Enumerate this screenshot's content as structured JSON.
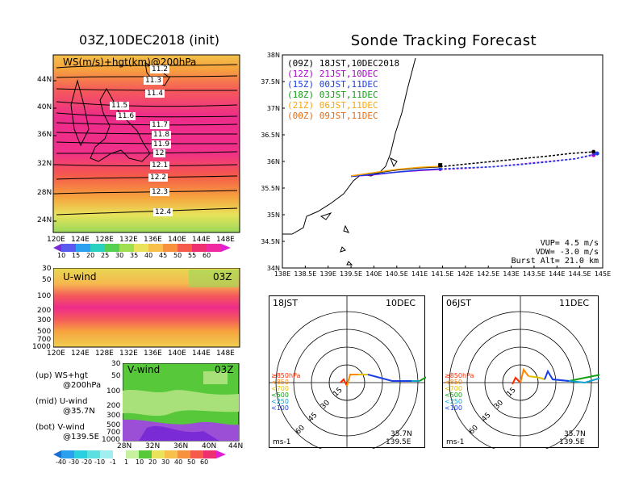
{
  "left_title": "03Z,10DEC2018 (init)",
  "right_title": "Sonde Tracking Forecast",
  "ws_panel": {
    "label": "WS(m/s)+hgt(km)@200hPa",
    "lat_ticks": [
      "44N",
      "40N",
      "36N",
      "32N",
      "28N",
      "24N"
    ],
    "lon_ticks": [
      "120E",
      "124E",
      "128E",
      "132E",
      "136E",
      "140E",
      "144E",
      "148E"
    ],
    "contour_labels": [
      "11.2",
      "11.3",
      "11.4",
      "11.5",
      "11.6",
      "11.7",
      "11.8",
      "11.9",
      "12",
      "12.1",
      "12.2",
      "12.3",
      "12.4"
    ],
    "colorbar_labels": [
      "10",
      "15",
      "20",
      "25",
      "30",
      "35",
      "40",
      "45",
      "50",
      "55",
      "60"
    ]
  },
  "u_panel": {
    "label": "U-wind",
    "time": "03Z",
    "p_ticks": [
      "30",
      "50",
      "100",
      "200",
      "300",
      "500",
      "700",
      "1000"
    ],
    "lon_ticks": [
      "120E",
      "124E",
      "128E",
      "132E",
      "136E",
      "140E",
      "144E",
      "148E"
    ]
  },
  "v_panel": {
    "label": "V-wind",
    "time": "03Z",
    "p_ticks": [
      "30",
      "50",
      "100",
      "200",
      "300",
      "500",
      "700",
      "1000"
    ],
    "lat_ticks": [
      "28N",
      "32N",
      "36N",
      "40N",
      "44N"
    ],
    "colorbar_labels": [
      "-40",
      "-30",
      "-20",
      "-10",
      "-1",
      "1",
      "10",
      "20",
      "30",
      "40",
      "50",
      "60"
    ]
  },
  "notes": [
    {
      "key": "(up)",
      "text": "WS+hgt",
      "sub": "@200hPa"
    },
    {
      "key": "(mid)",
      "text": "U-wind",
      "sub": "@35.7N"
    },
    {
      "key": "(bot)",
      "text": "V-wind",
      "sub": "@139.5E"
    }
  ],
  "track_legend": [
    {
      "utc": "(09Z)",
      "jst": "18JST,10DEC2018",
      "color": "#000000"
    },
    {
      "utc": "(12Z)",
      "jst": "21JST,10DEC",
      "color": "#aa00cc"
    },
    {
      "utc": "(15Z)",
      "jst": "00JST,11DEC",
      "color": "#1a3fe6"
    },
    {
      "utc": "(18Z)",
      "jst": "03JST,11DEC",
      "color": "#10a010"
    },
    {
      "utc": "(21Z)",
      "jst": "06JST,11DEC",
      "color": "#ffa500"
    },
    {
      "utc": "(00Z)",
      "jst": "09JST,11DEC",
      "color": "#e86a10"
    }
  ],
  "track_params": {
    "vup": "VUP= 4.5 m/s",
    "vdw": "VDW= -3.0 m/s",
    "burst": "Burst Alt= 21.0 km"
  },
  "polar_left": {
    "time": "18JST",
    "date": "10DEC",
    "lat": "35.7N",
    "lon": "139.5E",
    "unit": "ms-1"
  },
  "polar_right": {
    "time": "06JST",
    "date": "11DEC",
    "lat": "35.7N",
    "lon": "139.5E",
    "unit": "ms-1"
  },
  "polar_rings": [
    "15",
    "30",
    "45",
    "60"
  ],
  "polar_legend": [
    {
      "label": "≥850hPa",
      "color": "#ff2a00"
    },
    {
      "label": "<850",
      "color": "#ff8800"
    },
    {
      "label": "<700",
      "color": "#e0c000"
    },
    {
      "label": "<500",
      "color": "#10a010"
    },
    {
      "label": "<250",
      "color": "#10a0d0"
    },
    {
      "label": "<100",
      "color": "#1a3fe6"
    }
  ],
  "chart_data": {
    "type": "line",
    "title": "Sonde Tracking Forecast",
    "xlim": [
      138,
      145
    ],
    "ylim": [
      34,
      38
    ],
    "x_ticks": [
      "138E",
      "138.5E",
      "139E",
      "139.5E",
      "140E",
      "140.5E",
      "141E",
      "141.5E",
      "142E",
      "142.5E",
      "143E",
      "143.5E",
      "144E",
      "144.5E",
      "145E"
    ],
    "y_ticks": [
      "34N",
      "34.5N",
      "35N",
      "35.5N",
      "36N",
      "36.5N",
      "37N",
      "37.5N",
      "38N"
    ],
    "launch": {
      "lon": 139.5,
      "lat": 35.72
    },
    "series": [
      {
        "name": "(09Z) 18JST,10DEC2018",
        "color": "#000000",
        "dashed": false,
        "x": [
          139.5,
          140.0,
          140.5,
          141.0,
          141.45
        ],
        "y": [
          35.72,
          35.78,
          35.84,
          35.88,
          35.9
        ]
      },
      {
        "name": "(09Z) 18JST,10DEC2018",
        "color": "#000000",
        "dashed": true,
        "x": [
          141.45,
          142.0,
          142.6,
          143.2,
          143.8,
          144.3,
          144.8
        ],
        "y": [
          35.9,
          35.95,
          36.0,
          36.05,
          36.1,
          36.15,
          36.18
        ]
      },
      {
        "name": "(12Z) 21JST,10DEC",
        "color": "#aa00cc",
        "dashed": false,
        "x": [
          139.5,
          140.0,
          140.5,
          141.0,
          141.45
        ],
        "y": [
          35.72,
          35.75,
          35.8,
          35.83,
          35.85
        ]
      },
      {
        "name": "(12Z) 21JST,10DEC",
        "color": "#aa00cc",
        "dashed": true,
        "x": [
          141.45,
          142.0,
          142.6,
          143.2,
          143.8,
          144.4,
          144.8
        ],
        "y": [
          35.85,
          35.87,
          35.9,
          35.95,
          36.0,
          36.05,
          36.12
        ]
      },
      {
        "name": "(15Z) 00JST,11DEC",
        "color": "#1a3fe6",
        "dashed": false,
        "x": [
          139.5,
          140.0,
          140.5,
          141.0,
          141.45
        ],
        "y": [
          35.72,
          35.76,
          35.8,
          35.84,
          35.86
        ]
      },
      {
        "name": "(15Z) 00JST,11DEC",
        "color": "#1a3fe6",
        "dashed": true,
        "x": [
          141.45,
          142.0,
          142.6,
          143.2,
          143.8,
          144.4,
          144.88
        ],
        "y": [
          35.86,
          35.88,
          35.9,
          35.94,
          35.99,
          36.05,
          36.15
        ]
      },
      {
        "name": "(21Z) 06JST,11DEC",
        "color": "#ffa500",
        "dashed": false,
        "x": [
          139.5,
          140.0,
          140.5,
          141.0,
          141.45
        ],
        "y": [
          35.73,
          35.79,
          35.85,
          35.89,
          35.91
        ]
      }
    ]
  }
}
